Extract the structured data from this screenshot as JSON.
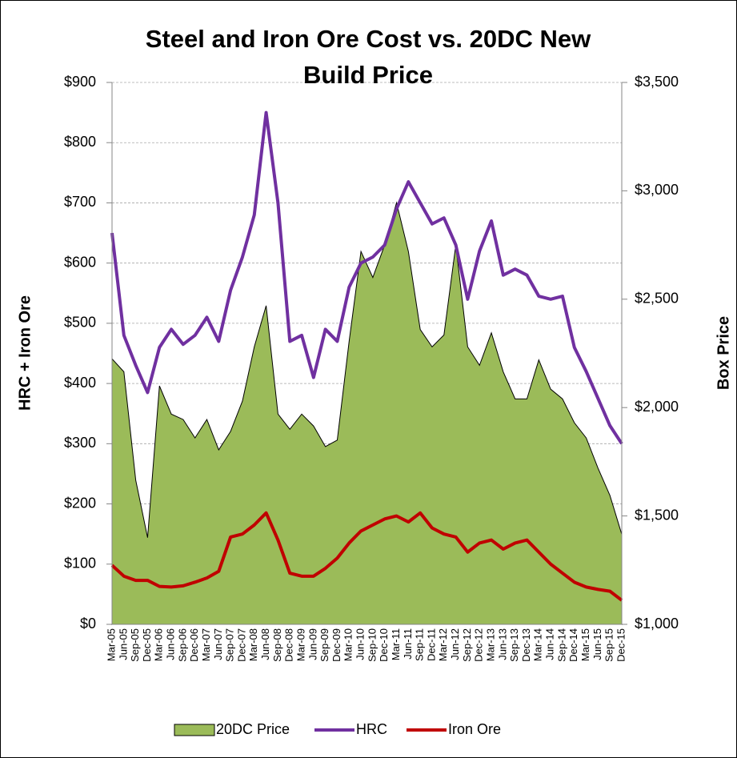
{
  "chart_data": {
    "type": "line",
    "title": "Steel and Iron Ore Cost vs. 20DC New Build Price",
    "y_label": "HRC + Iron Ore",
    "y2_label": "Box Price",
    "categories": [
      "Mar-05",
      "Jun-05",
      "Sep-05",
      "Dec-05",
      "Mar-06",
      "Jun-06",
      "Sep-06",
      "Dec-06",
      "Mar-07",
      "Jun-07",
      "Sep-07",
      "Dec-07",
      "Mar-08",
      "Jun-08",
      "Sep-08",
      "Dec-08",
      "Mar-09",
      "Jun-09",
      "Sep-09",
      "Dec-09",
      "Mar-10",
      "Jun-10",
      "Sep-10",
      "Dec-10",
      "Mar-11",
      "Jun-11",
      "Sep-11",
      "Dec-11",
      "Mar-12",
      "Jun-12",
      "Sep-12",
      "Dec-12",
      "Mar-13",
      "Jun-13",
      "Sep-13",
      "Dec-13",
      "Mar-14",
      "Jun-14",
      "Sep-14",
      "Dec-14",
      "Mar-15",
      "Jun-15",
      "Sep-15",
      "Dec-15"
    ],
    "series": [
      {
        "name": "20DC Price",
        "type": "area",
        "axis": "y2",
        "color": "#9bbb59",
        "values": [
          2225,
          2165,
          1665,
          1400,
          2100,
          1970,
          1945,
          1860,
          1945,
          1805,
          1890,
          2030,
          2280,
          2470,
          1970,
          1900,
          1970,
          1915,
          1820,
          1850,
          2305,
          2720,
          2600,
          2750,
          2945,
          2720,
          2360,
          2280,
          2335,
          2750,
          2280,
          2195,
          2345,
          2165,
          2040,
          2040,
          2220,
          2085,
          2040,
          1930,
          1860,
          1720,
          1595,
          1415
        ]
      },
      {
        "name": "HRC",
        "type": "line",
        "color": "#7030a0",
        "values": [
          650,
          480,
          430,
          385,
          460,
          490,
          465,
          480,
          510,
          470,
          555,
          610,
          680,
          850,
          700,
          470,
          480,
          410,
          490,
          470,
          560,
          600,
          610,
          630,
          690,
          735,
          700,
          665,
          675,
          630,
          540,
          620,
          670,
          580,
          590,
          580,
          545,
          540,
          545,
          460,
          420,
          375,
          330,
          300
        ]
      },
      {
        "name": "Iron Ore",
        "type": "line",
        "color": "#c00000",
        "values": [
          98,
          80,
          73,
          73,
          63,
          62,
          64,
          70,
          77,
          88,
          145,
          150,
          165,
          185,
          140,
          85,
          80,
          80,
          93,
          110,
          135,
          155,
          165,
          175,
          180,
          170,
          185,
          160,
          150,
          145,
          120,
          135,
          140,
          125,
          135,
          140,
          120,
          100,
          85,
          70,
          62,
          58,
          55,
          40
        ]
      }
    ],
    "ylim": [
      0,
      900
    ],
    "yticks": [
      {
        "value": 0,
        "label": "$0"
      },
      {
        "value": 100,
        "label": "$100"
      },
      {
        "value": 200,
        "label": "$200"
      },
      {
        "value": 300,
        "label": "$300"
      },
      {
        "value": 400,
        "label": "$400"
      },
      {
        "value": 500,
        "label": "$500"
      },
      {
        "value": 600,
        "label": "$600"
      },
      {
        "value": 700,
        "label": "$700"
      },
      {
        "value": 800,
        "label": "$800"
      },
      {
        "value": 900,
        "label": "$900"
      }
    ],
    "y2lim": [
      1000,
      3500
    ],
    "y2ticks": [
      {
        "value": 1000,
        "label": "$1,000"
      },
      {
        "value": 1500,
        "label": "$1,500"
      },
      {
        "value": 2000,
        "label": "$2,000"
      },
      {
        "value": 2500,
        "label": "$2,500"
      },
      {
        "value": 3000,
        "label": "$3,000"
      },
      {
        "value": 3500,
        "label": "$3,500"
      }
    ],
    "grid": true,
    "legend": "bottom"
  }
}
